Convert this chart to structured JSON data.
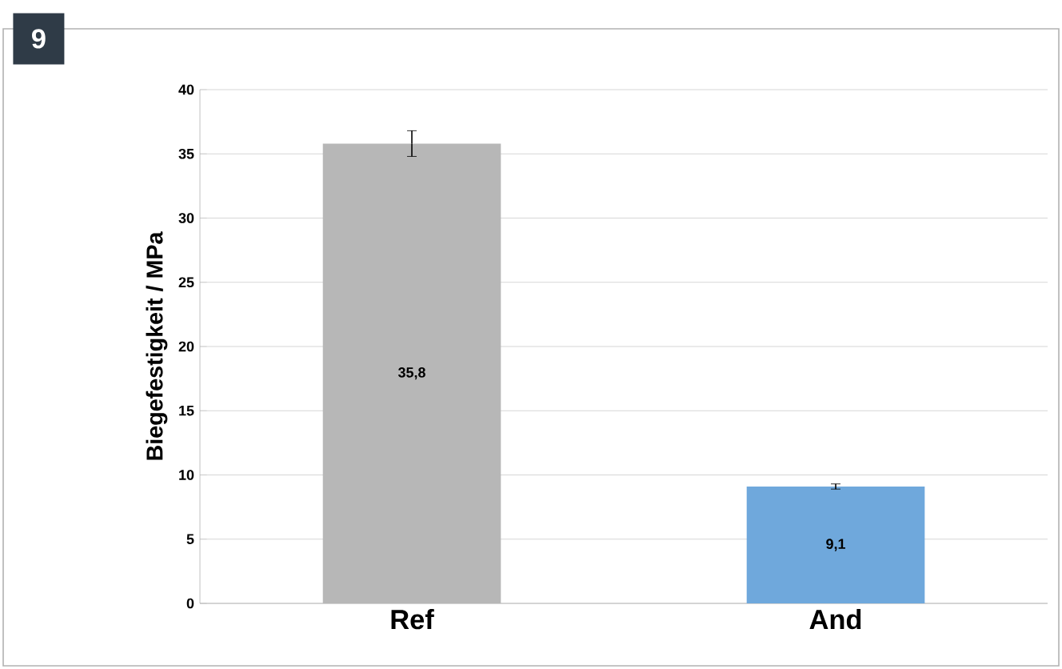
{
  "chart_data": {
    "type": "bar",
    "ylabel": "Biegefestigkeit / MPa",
    "categories": [
      "Ref",
      "And"
    ],
    "values": [
      35.8,
      9.1
    ],
    "colors": [
      "#b7b7b7",
      "#6fa8dc"
    ],
    "errors": [
      1.0,
      0.2
    ],
    "value_labels": [
      "35,8",
      "9,1"
    ],
    "ylim": [
      0,
      40
    ],
    "yticks": [
      0,
      5,
      10,
      15,
      20,
      25,
      30,
      35,
      40
    ],
    "grid": "y",
    "annotations": [
      "9"
    ]
  }
}
